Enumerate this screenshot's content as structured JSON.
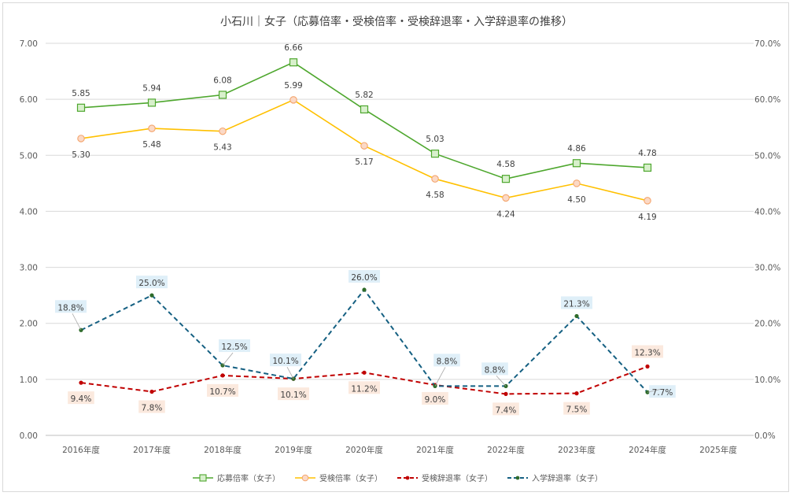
{
  "chart_data": {
    "type": "line",
    "title": "小石川｜女子（応募倍率・受検倍率・受検辞退率・入学辞退率の推移）",
    "categories": [
      "2016年度",
      "2017年度",
      "2018年度",
      "2019年度",
      "2020年度",
      "2021年度",
      "2022年度",
      "2023年度",
      "2024年度",
      "2025年度"
    ],
    "y_left": {
      "min": 0,
      "max": 7,
      "ticks": [
        "0.00",
        "1.00",
        "2.00",
        "3.00",
        "4.00",
        "5.00",
        "6.00",
        "7.00"
      ]
    },
    "y_right": {
      "min": 0,
      "max": 70,
      "ticks": [
        "0.0%",
        "10.0%",
        "20.0%",
        "30.0%",
        "40.0%",
        "50.0%",
        "60.0%",
        "70.0%"
      ]
    },
    "series": [
      {
        "name": "応募倍率（女子）",
        "axis": "left",
        "color": "#4ea72e",
        "marker": "square",
        "dash": "none",
        "values": [
          5.85,
          5.94,
          6.08,
          6.66,
          5.82,
          5.03,
          4.58,
          4.86,
          4.78,
          null
        ],
        "labels": [
          "5.85",
          "5.94",
          "6.08",
          "6.66",
          "5.82",
          "5.03",
          "4.58",
          "4.86",
          "4.78",
          ""
        ]
      },
      {
        "name": "受検倍率（女子）",
        "axis": "left",
        "color": "#ffc000",
        "marker": "circle",
        "dash": "none",
        "values": [
          5.3,
          5.48,
          5.43,
          5.99,
          5.17,
          4.58,
          4.24,
          4.5,
          4.19,
          null
        ],
        "labels": [
          "5.30",
          "5.48",
          "5.43",
          "5.99",
          "5.17",
          "4.58",
          "4.24",
          "4.50",
          "4.19",
          ""
        ]
      },
      {
        "name": "受検辞退率（女子）",
        "axis": "right",
        "color": "#c00000",
        "marker": "dot",
        "dash": "dash",
        "values": [
          9.4,
          7.8,
          10.7,
          10.1,
          11.2,
          9.0,
          7.4,
          7.5,
          12.3,
          null
        ],
        "labels": [
          "9.4%",
          "7.8%",
          "10.7%",
          "10.1%",
          "11.2%",
          "9.0%",
          "7.4%",
          "7.5%",
          "12.3%",
          ""
        ]
      },
      {
        "name": "入学辞退率（女子）",
        "axis": "right",
        "color": "#156082",
        "marker": "dot",
        "dash": "dash",
        "values": [
          18.8,
          25.0,
          12.5,
          10.1,
          26.0,
          8.8,
          8.8,
          21.3,
          7.7,
          null
        ],
        "labels": [
          "18.8%",
          "25.0%",
          "12.5%",
          "10.1%",
          "26.0%",
          "8.8%",
          "8.8%",
          "21.3%",
          "7.7%",
          ""
        ]
      }
    ],
    "legend": "bottom",
    "grid": true
  }
}
